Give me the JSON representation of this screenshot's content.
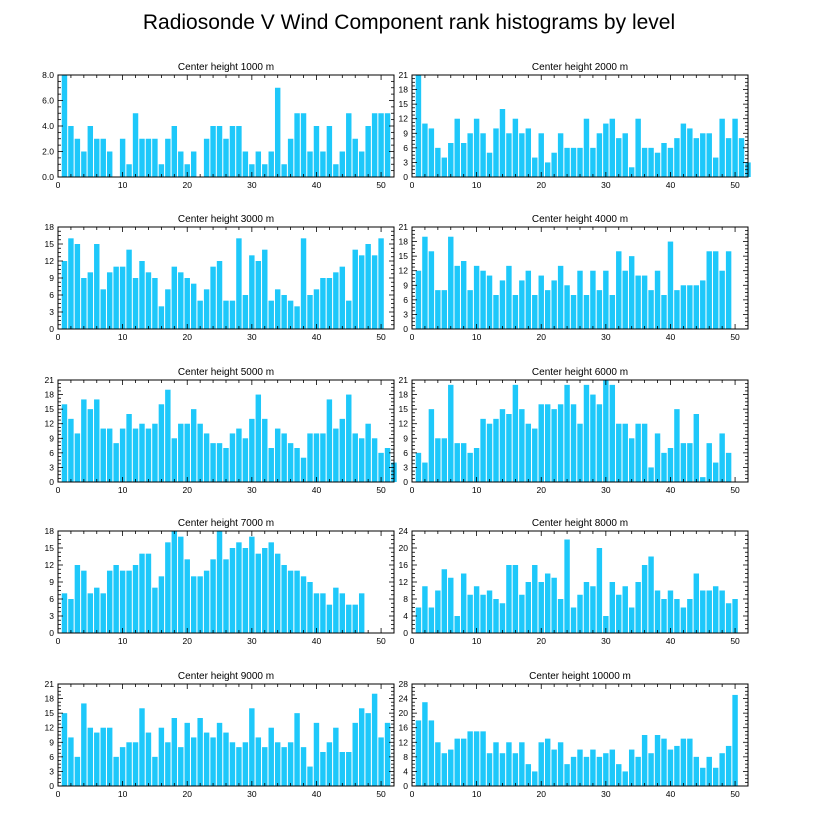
{
  "figure_title": "Radiosonde V Wind Component rank histograms by level",
  "colors": {
    "bar": "#1ec8fa",
    "frame": "#000000"
  },
  "chart_data": [
    {
      "type": "bar",
      "title": "Center height 1000 m",
      "xlim": [
        0,
        52
      ],
      "xticks": [
        "0",
        "10",
        "20",
        "30",
        "40",
        "50"
      ],
      "ylim": [
        0,
        8
      ],
      "yticks": [
        "0.0",
        "2.0",
        "4.0",
        "6.0",
        "8.0"
      ],
      "values": [
        8,
        4,
        3,
        2,
        4,
        3,
        3,
        2,
        0,
        3,
        1,
        5,
        3,
        3,
        3,
        1,
        3,
        4,
        2,
        1,
        2,
        0,
        3,
        4,
        4,
        3,
        4,
        4,
        2,
        1,
        2,
        1,
        2,
        7,
        1,
        3,
        5,
        5,
        2,
        4,
        2,
        4,
        1,
        2,
        5,
        3,
        2,
        4,
        5,
        5,
        5
      ]
    },
    {
      "type": "bar",
      "title": "Center height 2000 m",
      "xlim": [
        0,
        52
      ],
      "xticks": [
        "0",
        "10",
        "20",
        "30",
        "40",
        "50"
      ],
      "ylim": [
        0,
        21
      ],
      "yticks": [
        "0",
        "3",
        "6",
        "9",
        "12",
        "15",
        "18",
        "21"
      ],
      "values": [
        21,
        11,
        10,
        6,
        4,
        7,
        12,
        7,
        9,
        12,
        9,
        5,
        10,
        14,
        9,
        12,
        9,
        10,
        4,
        9,
        3,
        5,
        9,
        6,
        6,
        6,
        12,
        6,
        9,
        11,
        12,
        8,
        9,
        2,
        12,
        6,
        6,
        5,
        7,
        6,
        8,
        11,
        10,
        8,
        9,
        9,
        4,
        12,
        8,
        12,
        8,
        3
      ]
    },
    {
      "type": "bar",
      "title": "Center height 3000 m",
      "xlim": [
        0,
        52
      ],
      "xticks": [
        "0",
        "10",
        "20",
        "30",
        "40",
        "50"
      ],
      "ylim": [
        0,
        18
      ],
      "yticks": [
        "0",
        "3",
        "6",
        "9",
        "12",
        "15",
        "18"
      ],
      "values": [
        12,
        16,
        15,
        9,
        10,
        15,
        7,
        10,
        11,
        11,
        14,
        9,
        12,
        10,
        9,
        4,
        7,
        11,
        10,
        9,
        8,
        5,
        7,
        11,
        12,
        5,
        5,
        16,
        6,
        13,
        12,
        14,
        5,
        7,
        6,
        5,
        4,
        16,
        6,
        7,
        9,
        9,
        10,
        11,
        5,
        14,
        13,
        15,
        13,
        16
      ]
    },
    {
      "type": "bar",
      "title": "Center height 4000 m",
      "xlim": [
        0,
        52
      ],
      "xticks": [
        "0",
        "10",
        "20",
        "30",
        "40",
        "50"
      ],
      "ylim": [
        0,
        21
      ],
      "yticks": [
        "0",
        "3",
        "6",
        "9",
        "12",
        "15",
        "18",
        "21"
      ],
      "values": [
        12,
        19,
        16,
        8,
        8,
        19,
        13,
        14,
        8,
        13,
        12,
        11,
        7,
        10,
        13,
        7,
        10,
        12,
        7,
        11,
        8,
        10,
        13,
        9,
        7,
        12,
        7,
        12,
        8,
        12,
        7,
        16,
        12,
        15,
        11,
        11,
        8,
        12,
        7,
        18,
        8,
        9,
        9,
        9,
        10,
        16,
        16,
        12,
        16
      ]
    },
    {
      "type": "bar",
      "title": "Center height 5000 m",
      "xlim": [
        0,
        52
      ],
      "xticks": [
        "0",
        "10",
        "20",
        "30",
        "40",
        "50"
      ],
      "ylim": [
        0,
        21
      ],
      "yticks": [
        "0",
        "3",
        "6",
        "9",
        "12",
        "15",
        "18",
        "21"
      ],
      "values": [
        16,
        13,
        10,
        17,
        15,
        17,
        11,
        11,
        8,
        11,
        14,
        11,
        12,
        11,
        12,
        16,
        19,
        9,
        12,
        12,
        15,
        12,
        10,
        8,
        8,
        7,
        10,
        11,
        9,
        13,
        18,
        13,
        7,
        11,
        10,
        8,
        7,
        5,
        10,
        10,
        10,
        17,
        11,
        13,
        18,
        10,
        9,
        12,
        9,
        6,
        7,
        4
      ]
    },
    {
      "type": "bar",
      "title": "Center height 6000 m",
      "xlim": [
        0,
        52
      ],
      "xticks": [
        "0",
        "10",
        "20",
        "30",
        "40",
        "50"
      ],
      "ylim": [
        0,
        21
      ],
      "yticks": [
        "0",
        "3",
        "6",
        "9",
        "12",
        "15",
        "18",
        "21"
      ],
      "values": [
        6,
        4,
        15,
        9,
        9,
        20,
        8,
        8,
        6,
        7,
        13,
        12,
        13,
        15,
        14,
        20,
        15,
        12,
        11,
        16,
        16,
        15,
        16,
        20,
        16,
        12,
        20,
        18,
        16,
        21,
        20,
        12,
        12,
        9,
        12,
        12,
        3,
        10,
        6,
        7,
        15,
        8,
        8,
        14,
        1,
        8,
        4,
        10,
        6
      ]
    },
    {
      "type": "bar",
      "title": "Center height 7000 m",
      "xlim": [
        0,
        52
      ],
      "xticks": [
        "0",
        "10",
        "20",
        "30",
        "40",
        "50"
      ],
      "ylim": [
        0,
        18
      ],
      "yticks": [
        "0",
        "3",
        "6",
        "9",
        "12",
        "15",
        "18"
      ],
      "values": [
        7,
        6,
        12,
        11,
        7,
        8,
        7,
        11,
        12,
        11,
        11,
        12,
        14,
        14,
        8,
        10,
        16,
        18,
        17,
        13,
        10,
        10,
        11,
        13,
        18,
        13,
        15,
        16,
        15,
        17,
        14,
        15,
        16,
        14,
        12,
        11,
        11,
        10,
        9,
        7,
        7,
        5,
        8,
        7,
        5,
        5,
        7
      ]
    },
    {
      "type": "bar",
      "title": "Center height 8000 m",
      "xlim": [
        0,
        52
      ],
      "xticks": [
        "0",
        "10",
        "20",
        "30",
        "40",
        "50"
      ],
      "ylim": [
        0,
        24
      ],
      "yticks": [
        "0",
        "4",
        "8",
        "12",
        "16",
        "20",
        "24"
      ],
      "values": [
        6,
        11,
        6,
        10,
        15,
        13,
        4,
        14,
        9,
        11,
        9,
        10,
        8,
        7,
        16,
        16,
        9,
        12,
        16,
        12,
        14,
        13,
        8,
        22,
        6,
        9,
        12,
        11,
        20,
        4,
        12,
        9,
        11,
        6,
        12,
        16,
        18,
        10,
        8,
        10,
        8,
        6,
        8,
        14,
        10,
        10,
        11,
        10,
        7,
        8
      ]
    },
    {
      "type": "bar",
      "title": "Center height 9000 m",
      "xlim": [
        0,
        52
      ],
      "xticks": [
        "0",
        "10",
        "20",
        "30",
        "40",
        "50"
      ],
      "ylim": [
        0,
        21
      ],
      "yticks": [
        "0",
        "3",
        "6",
        "9",
        "12",
        "15",
        "18",
        "21"
      ],
      "values": [
        15,
        10,
        6,
        17,
        12,
        11,
        12,
        12,
        6,
        8,
        9,
        9,
        16,
        11,
        6,
        12,
        9,
        14,
        8,
        13,
        10,
        14,
        11,
        10,
        13,
        11,
        9,
        8,
        9,
        16,
        10,
        8,
        12,
        9,
        8,
        9,
        15,
        8,
        4,
        13,
        7,
        9,
        12,
        7,
        7,
        13,
        16,
        15,
        19,
        10,
        13
      ]
    },
    {
      "type": "bar",
      "title": "Center height 10000 m",
      "xlim": [
        0,
        52
      ],
      "xticks": [
        "0",
        "10",
        "20",
        "30",
        "40",
        "50"
      ],
      "ylim": [
        0,
        28
      ],
      "yticks": [
        "0",
        "4",
        "8",
        "12",
        "16",
        "20",
        "24",
        "28"
      ],
      "values": [
        18,
        23,
        18,
        12,
        9,
        10,
        13,
        13,
        15,
        15,
        15,
        9,
        12,
        9,
        12,
        9,
        12,
        6,
        4,
        12,
        13,
        10,
        12,
        6,
        8,
        10,
        8,
        10,
        8,
        9,
        10,
        6,
        4,
        10,
        8,
        14,
        9,
        14,
        13,
        10,
        11,
        13,
        13,
        8,
        5,
        8,
        5,
        9,
        11,
        25
      ]
    }
  ]
}
